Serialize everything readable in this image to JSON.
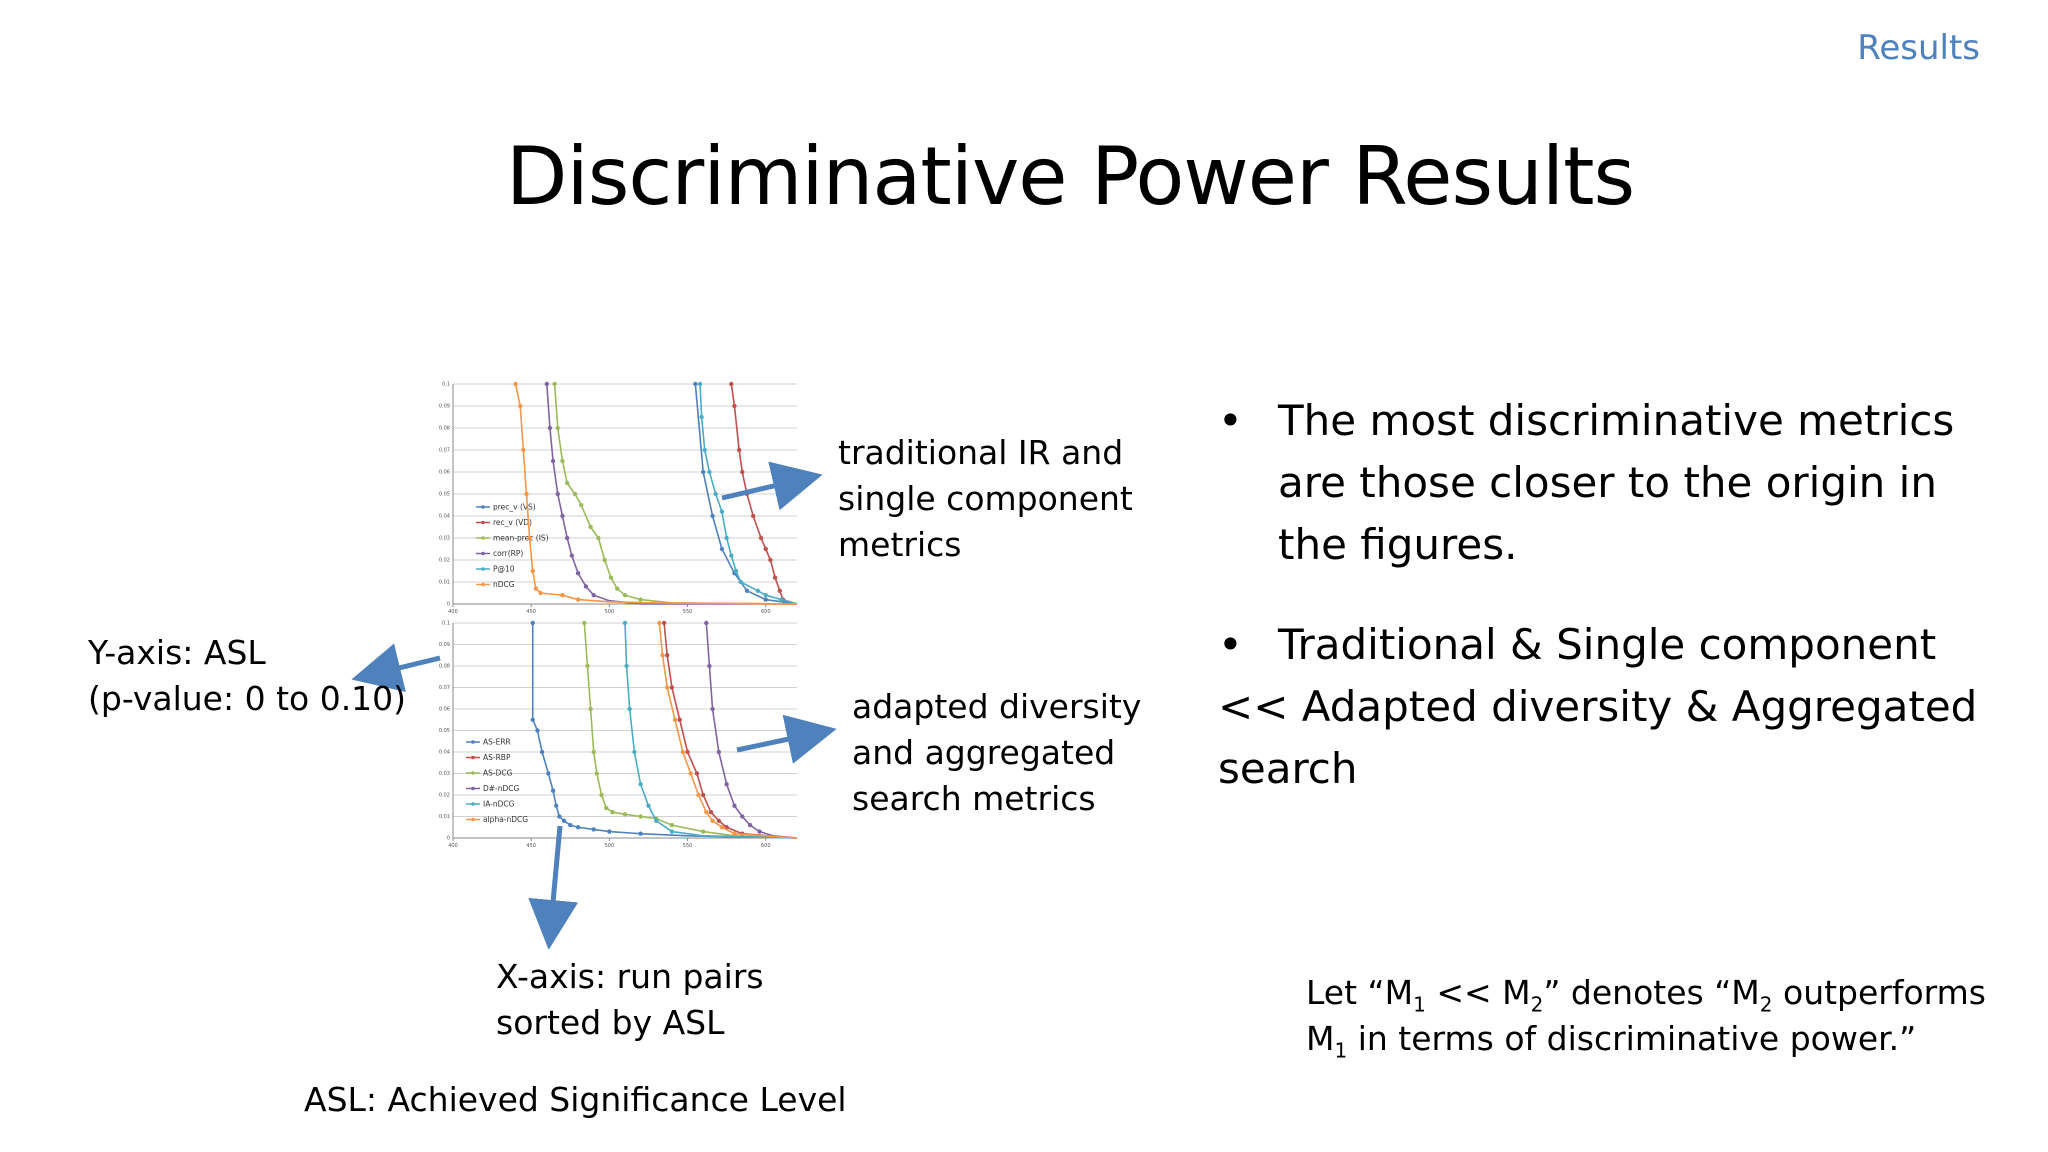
{
  "header": {
    "section": "Results"
  },
  "title": "Discriminative Power Results",
  "annotations": {
    "traditional": [
      "traditional IR and",
      "single component",
      "metrics"
    ],
    "adapted": [
      "adapted diversity",
      "and aggregated",
      "search metrics"
    ],
    "yaxis": [
      "Y-axis: ASL",
      "(p-value: 0 to 0.10)"
    ],
    "xaxis": [
      "X-axis: run pairs",
      "sorted by ASL"
    ],
    "asl_definition": "ASL: Achieved Significance Level"
  },
  "bullets": [
    {
      "symbol": "•",
      "text": "The most discriminative metrics are those closer to the origin in the figures."
    },
    {
      "symbol": "•",
      "text": "Traditional & Single component << Adapted diversity & Aggregated search"
    }
  ],
  "note": {
    "t1": "Let “M",
    "s1": "1",
    "t2": " << M",
    "s2": "2",
    "t3": "” denotes “M",
    "s3": "2",
    "t4": " outperforms",
    "t5": "M",
    "s4": "1",
    "t6": " in terms of discriminative power.”"
  },
  "colors": {
    "accent": "#4f81bd",
    "arrow": "#4f81bd",
    "blue": "#4f81bd",
    "red": "#c0504d",
    "green": "#9bbb59",
    "purple": "#8064a2",
    "teal": "#4bacc6",
    "orange": "#f79646"
  },
  "chart_data": [
    {
      "type": "line",
      "xlim": [
        400,
        620
      ],
      "ylim": [
        0,
        0.1
      ],
      "x_ticks": [
        400,
        450,
        500,
        550,
        600
      ],
      "y_ticks": [
        "0",
        "0.01",
        "0.02",
        "0.03",
        "0.04",
        "0.05",
        "0.06",
        "0.07",
        "0.08",
        "0.09",
        "0.1"
      ],
      "grid": true,
      "legend_position": "left",
      "series": [
        {
          "name": "prec_v (VS)",
          "color": "#4f81bd",
          "points": [
            [
              555,
              0.1
            ],
            [
              560,
              0.06
            ],
            [
              566,
              0.04
            ],
            [
              572,
              0.025
            ],
            [
              580,
              0.014
            ],
            [
              588,
              0.006
            ],
            [
              600,
              0.002
            ],
            [
              620,
              0
            ]
          ]
        },
        {
          "name": "rec_v (VD)",
          "color": "#c0504d",
          "points": [
            [
              578,
              0.1
            ],
            [
              580,
              0.09
            ],
            [
              583,
              0.07
            ],
            [
              585,
              0.06
            ],
            [
              588,
              0.05
            ],
            [
              592,
              0.04
            ],
            [
              597,
              0.03
            ],
            [
              600,
              0.025
            ],
            [
              603,
              0.02
            ],
            [
              606,
              0.012
            ],
            [
              609,
              0.006
            ],
            [
              611,
              0.002
            ],
            [
              620,
              0
            ]
          ]
        },
        {
          "name": "mean-prec (IS)",
          "color": "#9bbb59",
          "points": [
            [
              465,
              0.1
            ],
            [
              467,
              0.08
            ],
            [
              470,
              0.065
            ],
            [
              473,
              0.055
            ],
            [
              478,
              0.05
            ],
            [
              482,
              0.045
            ],
            [
              488,
              0.035
            ],
            [
              493,
              0.03
            ],
            [
              497,
              0.02
            ],
            [
              501,
              0.012
            ],
            [
              505,
              0.007
            ],
            [
              510,
              0.004
            ],
            [
              520,
              0.002
            ],
            [
              540,
              0.0005
            ],
            [
              620,
              0
            ]
          ]
        },
        {
          "name": "corr(RP)",
          "color": "#8064a2",
          "points": [
            [
              460,
              0.1
            ],
            [
              462,
              0.08
            ],
            [
              464,
              0.065
            ],
            [
              467,
              0.05
            ],
            [
              470,
              0.04
            ],
            [
              473,
              0.03
            ],
            [
              476,
              0.022
            ],
            [
              480,
              0.014
            ],
            [
              485,
              0.008
            ],
            [
              490,
              0.004
            ],
            [
              500,
              0.0015
            ],
            [
              520,
              0
            ],
            [
              620,
              0
            ]
          ]
        },
        {
          "name": "P@10",
          "color": "#4bacc6",
          "points": [
            [
              558,
              0.1
            ],
            [
              559,
              0.085
            ],
            [
              561,
              0.07
            ],
            [
              564,
              0.06
            ],
            [
              568,
              0.05
            ],
            [
              572,
              0.042
            ],
            [
              575,
              0.03
            ],
            [
              578,
              0.022
            ],
            [
              581,
              0.015
            ],
            [
              584,
              0.01
            ],
            [
              595,
              0.006
            ],
            [
              600,
              0.004
            ],
            [
              610,
              0.002
            ],
            [
              620,
              0
            ]
          ]
        },
        {
          "name": "nDCG",
          "color": "#f79646",
          "points": [
            [
              440,
              0.1
            ],
            [
              443,
              0.09
            ],
            [
              445,
              0.07
            ],
            [
              447,
              0.05
            ],
            [
              449,
              0.03
            ],
            [
              451,
              0.015
            ],
            [
              453,
              0.007
            ],
            [
              456,
              0.005
            ],
            [
              470,
              0.004
            ],
            [
              480,
              0.002
            ],
            [
              500,
              0.001
            ],
            [
              530,
              0.0005
            ],
            [
              620,
              0
            ]
          ]
        }
      ]
    },
    {
      "type": "line",
      "xlim": [
        400,
        620
      ],
      "ylim": [
        0,
        0.1
      ],
      "x_ticks": [
        400,
        450,
        500,
        550,
        600
      ],
      "y_ticks": [
        "0",
        "0.01",
        "0.02",
        "0.03",
        "0.04",
        "0.05",
        "0.06",
        "0.07",
        "0.08",
        "0.09",
        "0.1"
      ],
      "grid": true,
      "legend_position": "left",
      "series": [
        {
          "name": "AS-ERR",
          "color": "#4f81bd",
          "points": [
            [
              451,
              0.1
            ],
            [
              451,
              0.055
            ],
            [
              454,
              0.05
            ],
            [
              457,
              0.04
            ],
            [
              461,
              0.03
            ],
            [
              464,
              0.022
            ],
            [
              466,
              0.015
            ],
            [
              468,
              0.01
            ],
            [
              471,
              0.008
            ],
            [
              475,
              0.006
            ],
            [
              480,
              0.005
            ],
            [
              490,
              0.004
            ],
            [
              500,
              0.003
            ],
            [
              520,
              0.002
            ],
            [
              550,
              0.001
            ],
            [
              620,
              0
            ]
          ]
        },
        {
          "name": "AS-RBP",
          "color": "#c0504d",
          "points": [
            [
              535,
              0.1
            ],
            [
              537,
              0.085
            ],
            [
              540,
              0.07
            ],
            [
              545,
              0.055
            ],
            [
              550,
              0.04
            ],
            [
              556,
              0.03
            ],
            [
              560,
              0.02
            ],
            [
              565,
              0.012
            ],
            [
              570,
              0.008
            ],
            [
              575,
              0.005
            ],
            [
              585,
              0.002
            ],
            [
              620,
              0
            ]
          ]
        },
        {
          "name": "AS-DCG",
          "color": "#9bbb59",
          "points": [
            [
              484,
              0.1
            ],
            [
              486,
              0.08
            ],
            [
              488,
              0.06
            ],
            [
              490,
              0.04
            ],
            [
              492,
              0.03
            ],
            [
              495,
              0.02
            ],
            [
              498,
              0.014
            ],
            [
              502,
              0.012
            ],
            [
              510,
              0.011
            ],
            [
              520,
              0.01
            ],
            [
              530,
              0.009
            ],
            [
              540,
              0.006
            ],
            [
              560,
              0.003
            ],
            [
              580,
              0.001
            ],
            [
              620,
              0
            ]
          ]
        },
        {
          "name": "D#-nDCG",
          "color": "#8064a2",
          "points": [
            [
              562,
              0.1
            ],
            [
              564,
              0.08
            ],
            [
              566,
              0.06
            ],
            [
              570,
              0.04
            ],
            [
              575,
              0.025
            ],
            [
              580,
              0.015
            ],
            [
              585,
              0.01
            ],
            [
              590,
              0.006
            ],
            [
              596,
              0.003
            ],
            [
              605,
              0.001
            ],
            [
              620,
              0
            ]
          ]
        },
        {
          "name": "IA-nDCG",
          "color": "#4bacc6",
          "points": [
            [
              510,
              0.1
            ],
            [
              511,
              0.08
            ],
            [
              513,
              0.06
            ],
            [
              516,
              0.04
            ],
            [
              520,
              0.025
            ],
            [
              525,
              0.015
            ],
            [
              530,
              0.008
            ],
            [
              540,
              0.003
            ],
            [
              560,
              0.001
            ],
            [
              620,
              0
            ]
          ]
        },
        {
          "name": "alpha-nDCG",
          "color": "#f79646",
          "points": [
            [
              532,
              0.1
            ],
            [
              534,
              0.085
            ],
            [
              537,
              0.07
            ],
            [
              542,
              0.055
            ],
            [
              547,
              0.04
            ],
            [
              552,
              0.03
            ],
            [
              557,
              0.02
            ],
            [
              562,
              0.012
            ],
            [
              566,
              0.008
            ],
            [
              572,
              0.005
            ],
            [
              580,
              0.002
            ],
            [
              620,
              0
            ]
          ]
        }
      ]
    }
  ]
}
